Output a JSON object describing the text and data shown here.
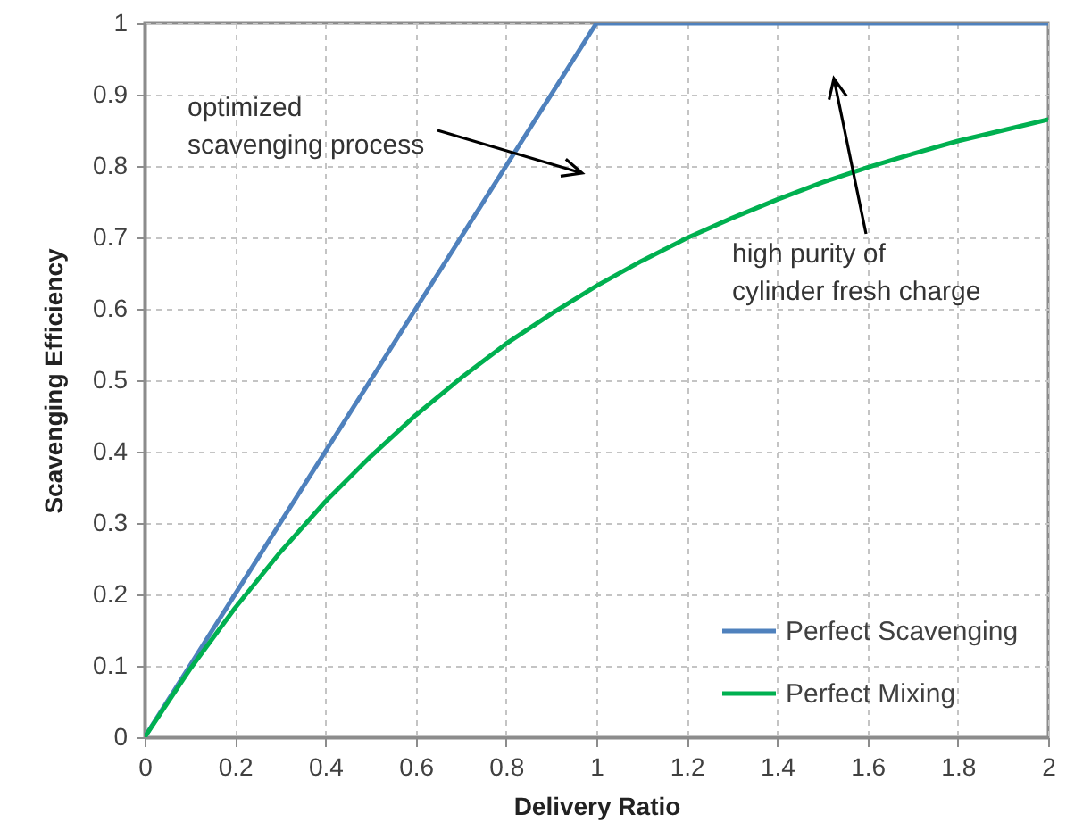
{
  "chart_data": {
    "type": "line",
    "xlabel": "Delivery Ratio",
    "ylabel": "Scavenging  Efficiency",
    "xlim": [
      0,
      2
    ],
    "ylim": [
      0,
      1
    ],
    "xticks": [
      0,
      0.2,
      0.4,
      0.6,
      0.8,
      1,
      1.2,
      1.4,
      1.6,
      1.8,
      2
    ],
    "yticks": [
      0,
      0.1,
      0.2,
      0.3,
      0.4,
      0.5,
      0.6,
      0.7,
      0.8,
      0.9,
      1
    ],
    "grid": true,
    "legend": "bottom right",
    "marker": "none",
    "line_style": "solid",
    "series": [
      {
        "name": "Perfect Scavenging",
        "color": "#4f81bd",
        "x": [
          0,
          1,
          2
        ],
        "values": [
          0,
          1,
          1
        ]
      },
      {
        "name": "Perfect Mixing",
        "color": "#00b050",
        "x": [
          0,
          0.1,
          0.2,
          0.3,
          0.4,
          0.5,
          0.6,
          0.7,
          0.8,
          0.9,
          1,
          1.1,
          1.2,
          1.3,
          1.4,
          1.5,
          1.6,
          1.7,
          1.8,
          1.9,
          2
        ],
        "values": [
          0,
          0.095,
          0.181,
          0.259,
          0.33,
          0.393,
          0.451,
          0.503,
          0.551,
          0.593,
          0.632,
          0.667,
          0.699,
          0.727,
          0.753,
          0.777,
          0.798,
          0.817,
          0.835,
          0.85,
          0.865
        ]
      }
    ],
    "annotations": [
      "optimized\nscavenging process",
      "high purity of\ncylinder fresh charge"
    ]
  }
}
